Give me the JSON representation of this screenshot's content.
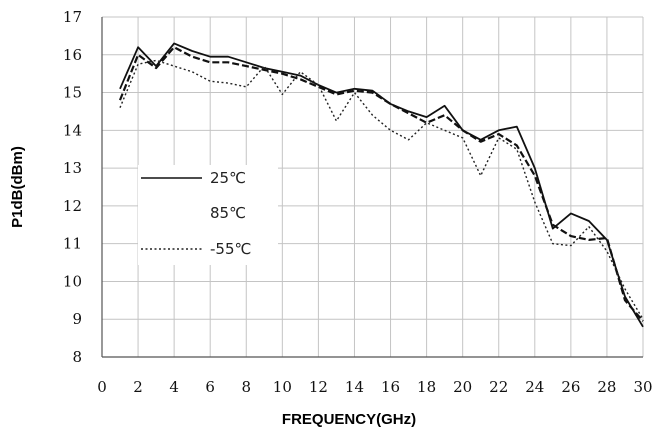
{
  "chart_data": {
    "type": "line",
    "title": "",
    "xlabel": "FREQUENCY(GHz)",
    "ylabel": "P1dB(dBm)",
    "xlim": [
      0,
      30
    ],
    "ylim": [
      8,
      17
    ],
    "x_ticks": [
      0,
      2,
      4,
      6,
      8,
      10,
      12,
      14,
      16,
      18,
      20,
      22,
      24,
      26,
      28,
      30
    ],
    "y_ticks": [
      8,
      9,
      10,
      11,
      12,
      13,
      14,
      15,
      16,
      17
    ],
    "grid": true,
    "legend_position": "left-middle",
    "x": [
      1,
      2,
      3,
      4,
      5,
      6,
      7,
      8,
      9,
      10,
      11,
      12,
      13,
      14,
      15,
      16,
      17,
      18,
      19,
      20,
      21,
      22,
      23,
      24,
      25,
      26,
      27,
      28,
      29,
      30
    ],
    "series": [
      {
        "name": "25℃",
        "style": "solid",
        "values": [
          15.1,
          16.2,
          15.7,
          16.3,
          16.1,
          15.95,
          15.95,
          15.8,
          15.65,
          15.55,
          15.45,
          15.2,
          15.0,
          15.1,
          15.05,
          14.7,
          14.5,
          14.35,
          14.65,
          14.0,
          13.75,
          14.0,
          14.1,
          13.0,
          11.4,
          11.8,
          11.6,
          11.1,
          9.6,
          8.8
        ]
      },
      {
        "name": "85℃",
        "style": "dashed",
        "values": [
          14.8,
          16.0,
          15.65,
          16.2,
          15.95,
          15.8,
          15.8,
          15.7,
          15.6,
          15.5,
          15.35,
          15.15,
          14.95,
          15.05,
          15.0,
          14.7,
          14.45,
          14.2,
          14.4,
          14.0,
          13.7,
          13.9,
          13.6,
          12.8,
          11.5,
          11.2,
          11.1,
          11.15,
          9.5,
          8.95
        ]
      },
      {
        "name": "-55℃",
        "style": "dotted",
        "values": [
          14.6,
          15.75,
          15.85,
          15.7,
          15.55,
          15.3,
          15.25,
          15.15,
          15.7,
          14.95,
          15.55,
          15.2,
          14.25,
          15.0,
          14.4,
          14.0,
          13.75,
          14.2,
          14.0,
          13.8,
          12.8,
          13.8,
          13.5,
          12.1,
          11.0,
          10.95,
          11.45,
          10.8,
          9.8,
          9.0
        ]
      }
    ]
  }
}
